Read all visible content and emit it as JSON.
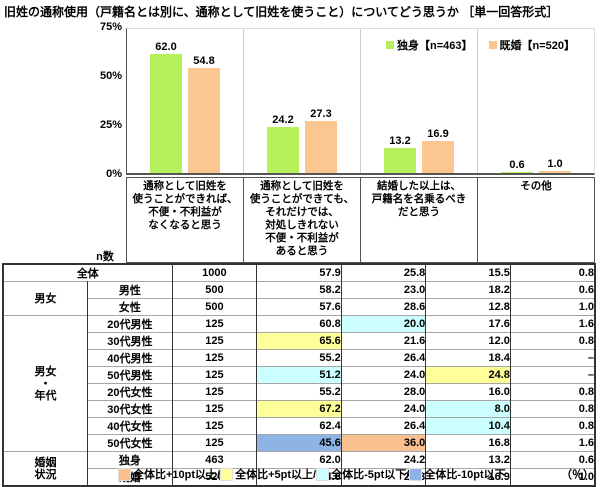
{
  "title": "旧姓の通称使用（戸籍名とは別に、通称として旧姓を使うこと）についてどう思うか ［単一回答形式］",
  "chart_data": {
    "type": "bar",
    "title": "旧姓の通称使用（戸籍名とは別に、通称として旧姓を使うこと）についてどう思うか",
    "categories": [
      "通称として旧姓を使うことができれば、不便・不利益がなくなると思う",
      "通称として旧姓を使うことができても、それだけでは、対処しきれない不便・不利益があると思う",
      "結婚した以上は、戸籍名を名乗るべきだと思う",
      "その他"
    ],
    "category_lines": [
      [
        "通称として旧姓を",
        "使うことができれば、",
        "不便・不利益が",
        "なくなると思う"
      ],
      [
        "通称として旧姓を",
        "使うことができても、",
        "それだけでは、",
        "対処しきれない",
        "不便・不利益が",
        "あると思う"
      ],
      [
        "結婚した以上は、",
        "戸籍名を名乗るべき",
        "だと思う"
      ],
      [
        "その他"
      ]
    ],
    "series": [
      {
        "name": "独身【n=463】",
        "color": "#b6f05a",
        "values": [
          62.0,
          24.2,
          13.2,
          0.6
        ],
        "labels": [
          "62.0",
          "24.2",
          "13.2",
          "0.6"
        ]
      },
      {
        "name": "既婚【n=520】",
        "color": "#fac791",
        "values": [
          54.8,
          27.3,
          16.9,
          1.0
        ],
        "labels": [
          "54.8",
          "27.3",
          "16.9",
          "1.0"
        ]
      }
    ],
    "ylim": [
      0,
      75
    ],
    "yticks": [
      "75%",
      "50%",
      "25%",
      "0%"
    ],
    "grid": false,
    "legend_position": "top-right"
  },
  "table": {
    "n_header": "n数",
    "rows": [
      {
        "label": "全体",
        "label_span": 2,
        "n": "1000",
        "values": [
          "57.9",
          "25.8",
          "15.5",
          "0.8"
        ],
        "hl": [
          null,
          null,
          null,
          null
        ]
      },
      {
        "group_lines": [
          "男女"
        ],
        "group_rowspan": 2,
        "label": "男性",
        "n": "500",
        "values": [
          "58.2",
          "23.0",
          "18.2",
          "0.6"
        ],
        "hl": [
          null,
          null,
          null,
          null
        ]
      },
      {
        "label": "女性",
        "n": "500",
        "values": [
          "57.6",
          "28.6",
          "12.8",
          "1.0"
        ],
        "hl": [
          null,
          null,
          null,
          null
        ]
      },
      {
        "group_lines": [
          "男女",
          "・",
          "年代"
        ],
        "group_rowspan": 8,
        "label": "20代男性",
        "n": "125",
        "values": [
          "60.8",
          "20.0",
          "17.6",
          "1.6"
        ],
        "hl": [
          null,
          "cyan",
          null,
          null
        ]
      },
      {
        "label": "30代男性",
        "n": "125",
        "values": [
          "65.6",
          "21.6",
          "12.0",
          "0.8"
        ],
        "hl": [
          "yellow",
          null,
          null,
          null
        ]
      },
      {
        "label": "40代男性",
        "n": "125",
        "values": [
          "55.2",
          "26.4",
          "18.4",
          "–"
        ],
        "hl": [
          null,
          null,
          null,
          null
        ]
      },
      {
        "label": "50代男性",
        "n": "125",
        "values": [
          "51.2",
          "24.0",
          "24.8",
          "–"
        ],
        "hl": [
          "cyan",
          null,
          "yellow",
          null
        ]
      },
      {
        "label": "20代女性",
        "n": "125",
        "values": [
          "55.2",
          "28.0",
          "16.0",
          "0.8"
        ],
        "hl": [
          null,
          null,
          null,
          null
        ]
      },
      {
        "label": "30代女性",
        "n": "125",
        "values": [
          "67.2",
          "24.0",
          "8.0",
          "0.8"
        ],
        "hl": [
          "yellow",
          null,
          "cyan",
          null
        ]
      },
      {
        "label": "40代女性",
        "n": "125",
        "values": [
          "62.4",
          "26.4",
          "10.4",
          "0.8"
        ],
        "hl": [
          null,
          null,
          "cyan",
          null
        ]
      },
      {
        "label": "50代女性",
        "n": "125",
        "values": [
          "45.6",
          "36.0",
          "16.8",
          "1.6"
        ],
        "hl": [
          "blue",
          "orange",
          null,
          null
        ]
      },
      {
        "group_lines": [
          "婚姻",
          "状況"
        ],
        "group_rowspan": 2,
        "label": "独身",
        "n": "463",
        "values": [
          "62.0",
          "24.2",
          "13.2",
          "0.6"
        ],
        "hl": [
          null,
          null,
          null,
          null
        ]
      },
      {
        "label": "既婚",
        "n": "520",
        "values": [
          "54.8",
          "27.3",
          "16.9",
          "1.0"
        ],
        "hl": [
          null,
          null,
          null,
          null
        ]
      }
    ],
    "group_separator_rows": [
      1,
      3,
      11
    ]
  },
  "footer": {
    "legend": [
      {
        "color": "#fac090",
        "label": "全体比+10pt以上/"
      },
      {
        "color": "#ffff99",
        "label": "全体比+5pt以上/"
      },
      {
        "color": "#ccffff",
        "label": "全体比-5pt以下/"
      },
      {
        "color": "#8eb4e3",
        "label": "全体比-10pt以下"
      }
    ],
    "unit": "（％）"
  }
}
